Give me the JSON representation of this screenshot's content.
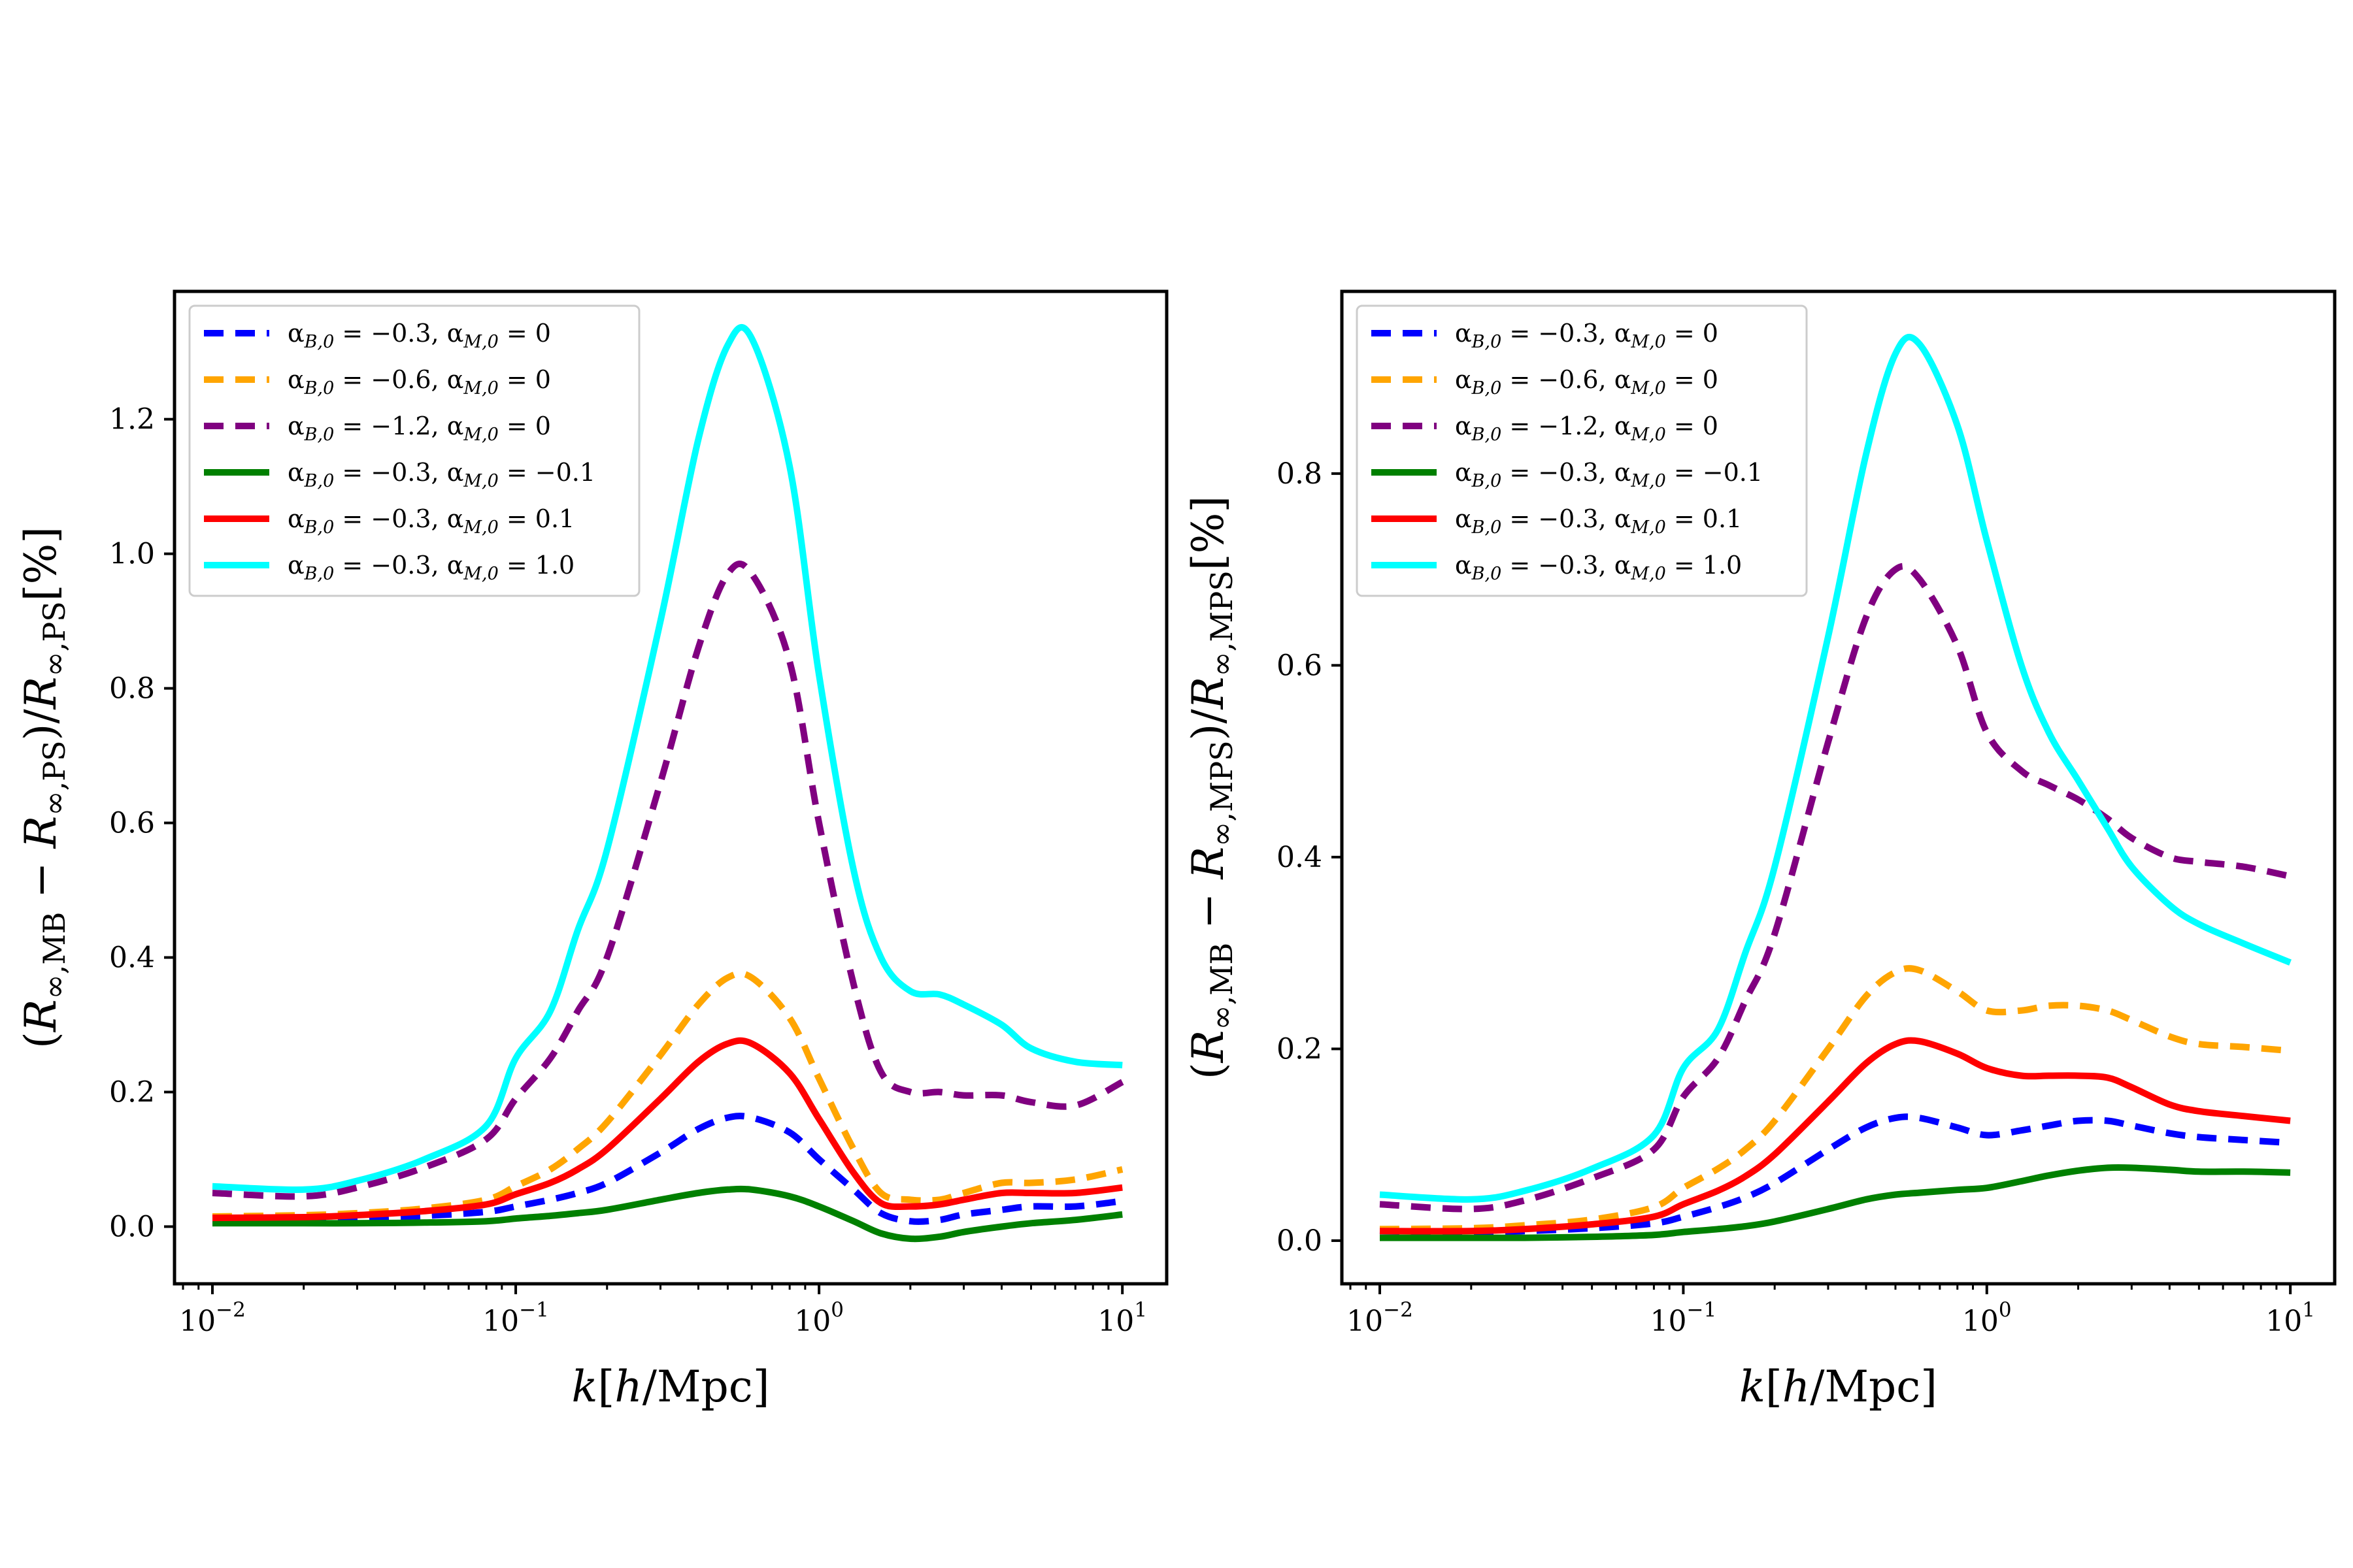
{
  "legend_labels": [
    "α_{B,0} = −0.3, α_{M,0} = 0",
    "α_{B,0} = −0.6, α_{M,0} = 0",
    "α_{B,0} = −1.2, α_{M,0} = 0",
    "α_{B,0} = −0.3, α_{M,0} = −0.1",
    "α_{B,0} = −0.3, α_{M,0} = 0.1",
    "α_{B,0} = −0.3, α_{M,0} = 1.0"
  ],
  "series_styles": [
    {
      "color": "#0000ff",
      "dash": true
    },
    {
      "color": "#ffa500",
      "dash": true
    },
    {
      "color": "#800080",
      "dash": true
    },
    {
      "color": "#008000",
      "dash": false
    },
    {
      "color": "#ff0000",
      "dash": false
    },
    {
      "color": "#00ffff",
      "dash": false
    }
  ],
  "chart_data": [
    {
      "type": "line",
      "xlabel": "k[h/Mpc]",
      "ylabel": "(R_{∞,MB} − R_{∞,PS})/R_{∞,PS}[%]",
      "xscale": "log",
      "xlim": [
        0.0075,
        14
      ],
      "ylim": [
        -0.085,
        1.39
      ],
      "xticks": [
        0.01,
        0.1,
        1,
        10
      ],
      "xtick_labels": [
        [
          "10",
          "−2"
        ],
        [
          "10",
          "−1"
        ],
        [
          "10",
          "0"
        ],
        [
          "10",
          "1"
        ]
      ],
      "yticks": [
        0.0,
        0.2,
        0.4,
        0.6,
        0.8,
        1.0,
        1.2
      ],
      "ytick_labels": [
        "0.0",
        "0.2",
        "0.4",
        "0.6",
        "0.8",
        "1.0",
        "1.2"
      ],
      "grid": false,
      "legend_position": "upper-left",
      "x": [
        0.01,
        0.02,
        0.03,
        0.05,
        0.08,
        0.1,
        0.13,
        0.16,
        0.2,
        0.3,
        0.4,
        0.5,
        0.6,
        0.8,
        1.0,
        1.3,
        1.6,
        2.0,
        2.5,
        3.0,
        4.0,
        5.0,
        7.0,
        10.0
      ],
      "series": [
        {
          "name": "α_{B,0} = −0.3, α_{M,0} = 0",
          "values": [
            0.01,
            0.01,
            0.012,
            0.016,
            0.022,
            0.03,
            0.04,
            0.05,
            0.065,
            0.11,
            0.145,
            0.162,
            0.162,
            0.14,
            0.1,
            0.055,
            0.02,
            0.008,
            0.01,
            0.018,
            0.025,
            0.03,
            0.03,
            0.038
          ]
        },
        {
          "name": "α_{B,0} = −0.6, α_{M,0} = 0",
          "values": [
            0.015,
            0.017,
            0.02,
            0.027,
            0.04,
            0.06,
            0.085,
            0.115,
            0.155,
            0.255,
            0.33,
            0.37,
            0.37,
            0.31,
            0.22,
            0.115,
            0.05,
            0.04,
            0.04,
            0.05,
            0.065,
            0.065,
            0.07,
            0.085
          ]
        },
        {
          "name": "α_{B,0} = −1.2, α_{M,0} = 0",
          "values": [
            0.05,
            0.045,
            0.058,
            0.088,
            0.13,
            0.19,
            0.25,
            0.32,
            0.4,
            0.66,
            0.86,
            0.97,
            0.97,
            0.84,
            0.6,
            0.36,
            0.23,
            0.2,
            0.2,
            0.195,
            0.195,
            0.185,
            0.18,
            0.215
          ]
        },
        {
          "name": "α_{B,0} = −0.3, α_{M,0} = −0.1",
          "values": [
            0.005,
            0.005,
            0.005,
            0.006,
            0.008,
            0.012,
            0.016,
            0.02,
            0.025,
            0.04,
            0.05,
            0.055,
            0.055,
            0.045,
            0.03,
            0.008,
            -0.01,
            -0.018,
            -0.015,
            -0.008,
            0.0,
            0.005,
            0.01,
            0.018
          ]
        },
        {
          "name": "α_{B,0} = −0.3, α_{M,0} = 0.1",
          "values": [
            0.013,
            0.014,
            0.017,
            0.023,
            0.033,
            0.048,
            0.065,
            0.085,
            0.115,
            0.19,
            0.245,
            0.272,
            0.272,
            0.228,
            0.16,
            0.08,
            0.035,
            0.03,
            0.033,
            0.04,
            0.05,
            0.05,
            0.05,
            0.058
          ]
        },
        {
          "name": "α_{B,0} = −0.3, α_{M,0} = 1.0",
          "values": [
            0.06,
            0.055,
            0.068,
            0.1,
            0.15,
            0.25,
            0.32,
            0.44,
            0.56,
            0.9,
            1.17,
            1.31,
            1.32,
            1.13,
            0.82,
            0.53,
            0.4,
            0.35,
            0.345,
            0.33,
            0.3,
            0.265,
            0.245,
            0.24
          ]
        }
      ]
    },
    {
      "type": "line",
      "xlabel": "k[h/Mpc]",
      "ylabel": "(R_{∞,MB} − R_{∞,MPS})/R_{∞,MPS}[%]",
      "xscale": "log",
      "xlim": [
        0.0075,
        14
      ],
      "ylim": [
        -0.045,
        0.99
      ],
      "xticks": [
        0.01,
        0.1,
        1,
        10
      ],
      "xtick_labels": [
        [
          "10",
          "−2"
        ],
        [
          "10",
          "−1"
        ],
        [
          "10",
          "0"
        ],
        [
          "10",
          "1"
        ]
      ],
      "yticks": [
        0.0,
        0.2,
        0.4,
        0.6,
        0.8
      ],
      "ytick_labels": [
        "0.0",
        "0.2",
        "0.4",
        "0.6",
        "0.8"
      ],
      "grid": false,
      "legend_position": "upper-left",
      "x": [
        0.01,
        0.02,
        0.03,
        0.05,
        0.08,
        0.1,
        0.13,
        0.16,
        0.2,
        0.3,
        0.4,
        0.5,
        0.6,
        0.8,
        1.0,
        1.3,
        1.6,
        2.0,
        2.5,
        3.0,
        4.0,
        5.0,
        7.0,
        10.0
      ],
      "series": [
        {
          "name": "α_{B,0} = −0.3, α_{M,0} = 0",
          "values": [
            0.01,
            0.008,
            0.01,
            0.013,
            0.018,
            0.025,
            0.035,
            0.045,
            0.06,
            0.095,
            0.118,
            0.128,
            0.128,
            0.118,
            0.11,
            0.115,
            0.12,
            0.125,
            0.125,
            0.12,
            0.112,
            0.108,
            0.105,
            0.102
          ]
        },
        {
          "name": "α_{B,0} = −0.6, α_{M,0} = 0",
          "values": [
            0.012,
            0.013,
            0.016,
            0.022,
            0.035,
            0.055,
            0.075,
            0.095,
            0.125,
            0.2,
            0.255,
            0.28,
            0.282,
            0.26,
            0.24,
            0.24,
            0.245,
            0.245,
            0.24,
            0.23,
            0.213,
            0.205,
            0.202,
            0.198
          ]
        },
        {
          "name": "α_{B,0} = −1.2, α_{M,0} = 0",
          "values": [
            0.038,
            0.033,
            0.042,
            0.065,
            0.095,
            0.15,
            0.19,
            0.25,
            0.32,
            0.52,
            0.65,
            0.7,
            0.69,
            0.62,
            0.53,
            0.49,
            0.475,
            0.46,
            0.44,
            0.42,
            0.4,
            0.395,
            0.39,
            0.38
          ]
        },
        {
          "name": "α_{B,0} = −0.3, α_{M,0} = −0.1",
          "values": [
            0.003,
            0.003,
            0.003,
            0.004,
            0.006,
            0.009,
            0.012,
            0.015,
            0.02,
            0.033,
            0.043,
            0.048,
            0.05,
            0.053,
            0.055,
            0.062,
            0.068,
            0.073,
            0.076,
            0.076,
            0.074,
            0.072,
            0.072,
            0.071
          ]
        },
        {
          "name": "α_{B,0} = −0.3, α_{M,0} = 0.1",
          "values": [
            0.01,
            0.01,
            0.012,
            0.017,
            0.025,
            0.038,
            0.052,
            0.067,
            0.09,
            0.145,
            0.185,
            0.205,
            0.208,
            0.195,
            0.18,
            0.172,
            0.172,
            0.172,
            0.17,
            0.16,
            0.142,
            0.135,
            0.13,
            0.125
          ]
        },
        {
          "name": "α_{B,0} = −0.3, α_{M,0} = 1.0",
          "values": [
            0.048,
            0.043,
            0.052,
            0.075,
            0.11,
            0.18,
            0.22,
            0.3,
            0.39,
            0.63,
            0.82,
            0.925,
            0.935,
            0.85,
            0.73,
            0.6,
            0.53,
            0.48,
            0.43,
            0.39,
            0.35,
            0.33,
            0.31,
            0.29
          ]
        }
      ]
    }
  ]
}
